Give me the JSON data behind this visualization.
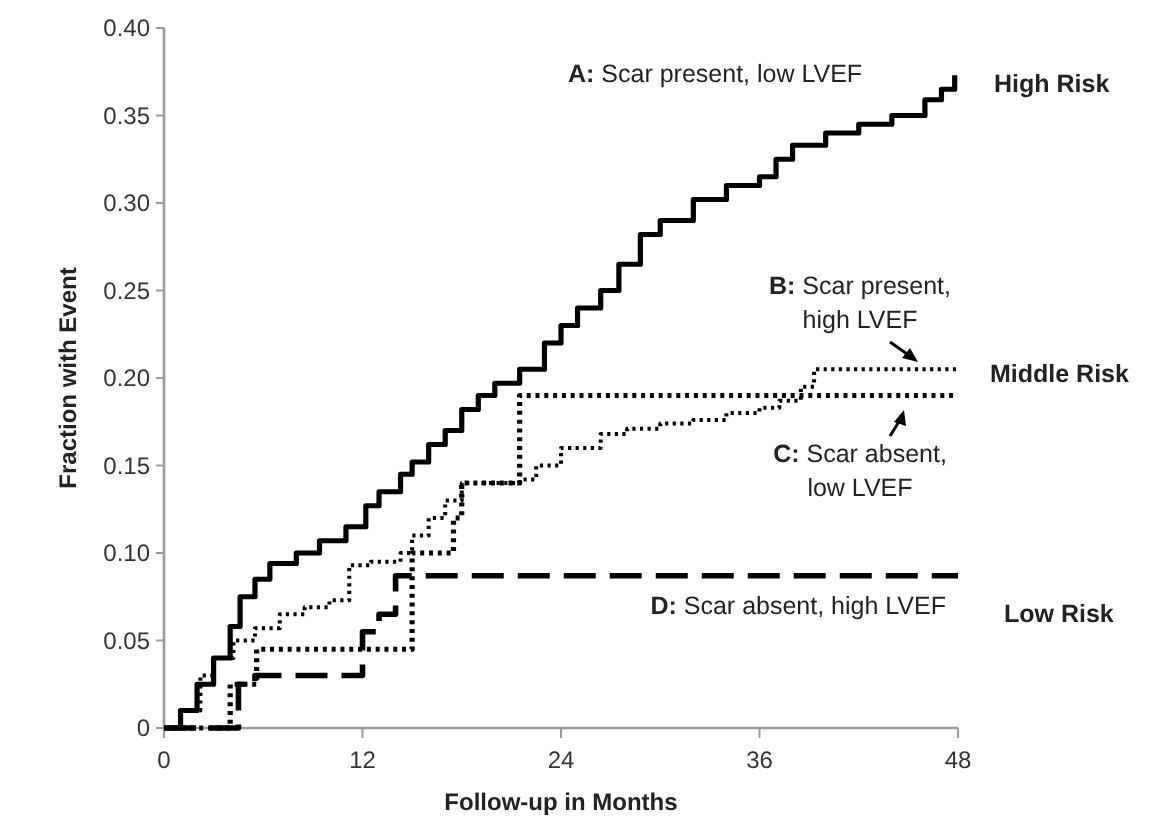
{
  "chart_data": {
    "type": "step",
    "xlabel": "Follow-up in Months",
    "ylabel": "Fraction with Event",
    "xlim": [
      0,
      48
    ],
    "xticks": [
      0,
      12,
      24,
      36,
      48
    ],
    "ylim": [
      0,
      0.4
    ],
    "yticks": [
      0,
      {
        "value": 0.05,
        "label": "0.05"
      },
      {
        "value": 0.1,
        "label": "0.10"
      },
      {
        "value": 0.15,
        "label": "0.15"
      },
      {
        "value": 0.2,
        "label": "0.20"
      },
      {
        "value": 0.25,
        "label": "0.25"
      },
      {
        "value": 0.3,
        "label": "0.30"
      },
      {
        "value": 0.35,
        "label": "0.35"
      },
      {
        "value": 0.4,
        "label": "0.40"
      }
    ],
    "series": [
      {
        "color": "#000000",
        "line_style": "solid",
        "x": [
          0.2,
          1,
          2,
          3,
          4,
          4.6,
          5.5,
          6.4,
          8,
          9.4,
          11,
          12.2,
          13,
          14.3,
          15,
          16,
          17,
          18,
          19,
          20,
          21.5,
          23,
          24,
          25,
          26.4,
          27.5,
          28.8,
          30,
          32,
          34,
          36,
          37,
          38,
          40,
          42,
          44,
          46,
          47,
          47.8
        ],
        "values": [
          0,
          0.01,
          0.025,
          0.04,
          0.058,
          0.075,
          0.085,
          0.094,
          0.1,
          0.107,
          0.115,
          0.127,
          0.135,
          0.145,
          0.152,
          0.162,
          0.17,
          0.182,
          0.19,
          0.197,
          0.205,
          0.22,
          0.23,
          0.24,
          0.25,
          0.265,
          0.282,
          0.29,
          0.302,
          0.31,
          0.315,
          0.325,
          0.333,
          0.34,
          0.345,
          0.35,
          0.359,
          0.365,
          0.373
        ]
      },
      {
        "color": "#000000",
        "line_style": "dotted",
        "x": [
          0,
          1,
          2.2,
          3,
          4.2,
          5.5,
          7,
          8.5,
          10,
          11.2,
          12.5,
          14.3,
          15,
          16,
          17,
          18,
          19.5,
          21.5,
          22.5,
          24,
          26.4,
          28,
          30,
          32,
          34,
          36,
          37.2,
          38.5,
          39.3,
          48
        ],
        "values": [
          0,
          0.01,
          0.03,
          0.04,
          0.05,
          0.057,
          0.065,
          0.069,
          0.073,
          0.093,
          0.095,
          0.1,
          0.11,
          0.12,
          0.13,
          0.14,
          0.14,
          0.142,
          0.15,
          0.16,
          0.168,
          0.171,
          0.174,
          0.176,
          0.18,
          0.183,
          0.187,
          0.195,
          0.205,
          0.205
        ]
      },
      {
        "color": "#000000",
        "line_style": "dotted",
        "x": [
          0,
          4,
          5.6,
          15,
          17,
          17.5,
          18,
          21.5,
          48
        ],
        "values": [
          0,
          0.025,
          0.045,
          0.1,
          0.1,
          0.12,
          0.14,
          0.19,
          0.19
        ]
      },
      {
        "color": "#000000",
        "line_style": "dashed",
        "x": [
          0,
          4.5,
          5.5,
          12,
          13,
          14,
          48
        ],
        "values": [
          0,
          0.025,
          0.03,
          0.055,
          0.065,
          0.087,
          0.087
        ]
      }
    ],
    "annotations": [
      "A: Scar present, low LVEF",
      "High Risk",
      "B: Scar present,\nhigh LVEF",
      "Middle Risk",
      "C: Scar absent,\nlow LVEF",
      "D: Scar absent, high LVEF",
      "Low Risk"
    ]
  }
}
